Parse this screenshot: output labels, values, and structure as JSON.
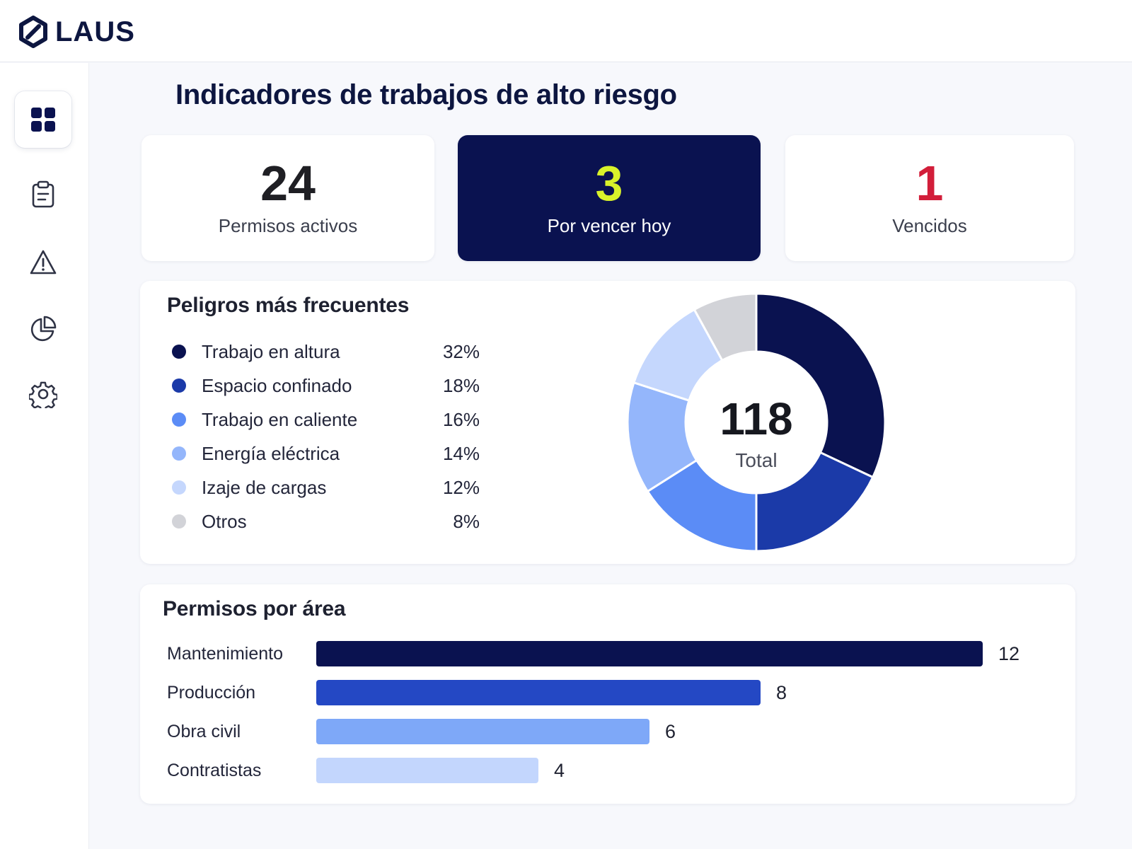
{
  "app": {
    "brand": "LAUS"
  },
  "sidebar": {
    "items": [
      {
        "icon": "dashboard-grid-icon",
        "active": true
      },
      {
        "icon": "clipboard-icon",
        "active": false
      },
      {
        "icon": "warning-triangle-icon",
        "active": false
      },
      {
        "icon": "pie-chart-icon",
        "active": false
      },
      {
        "icon": "gear-icon",
        "active": false
      }
    ]
  },
  "page": {
    "title": "Indicadores de trabajos de alto riesgo"
  },
  "kpis": [
    {
      "value": "24",
      "label": "Permisos activos",
      "value_color": "#1f1f24"
    },
    {
      "value": "3",
      "label": "Por vencer hoy",
      "value_color": "#d9f22a",
      "background": "#0a1250"
    },
    {
      "value": "1",
      "label": "Vencidos",
      "value_color": "#d21e3a"
    }
  ],
  "hazards": {
    "title": "Peligros más frecuentes",
    "total_value": "118",
    "total_label": "Total"
  },
  "areas": {
    "title": "Permisos por área"
  },
  "chart_data": [
    {
      "type": "pie",
      "title": "Peligros más frecuentes",
      "donut": true,
      "categories": [
        "Trabajo en altura",
        "Espacio confinado",
        "Trabajo en caliente",
        "Energía eléctrica",
        "Izaje de cargas",
        "Otros"
      ],
      "values": [
        32,
        18,
        16,
        14,
        12,
        8
      ],
      "labels": [
        "32%",
        "18%",
        "16%",
        "14%",
        "12%",
        "8%"
      ],
      "colors": [
        "#0a1250",
        "#1b3aa8",
        "#5b8cf6",
        "#94b6fb",
        "#c5d7fd",
        "#d2d3d8"
      ],
      "center_value": "118",
      "center_label": "Total",
      "legend_placement": "left"
    },
    {
      "type": "bar",
      "orientation": "horizontal",
      "title": "Permisos por área",
      "categories": [
        "Mantenimiento",
        "Producción",
        "Obra civil",
        "Contratistas"
      ],
      "values": [
        12,
        8,
        6,
        4
      ],
      "colors": [
        "#0a1250",
        "#2448c4",
        "#7ea8f8",
        "#c3d6fd"
      ],
      "xlim": [
        0,
        12.3
      ],
      "grid": false
    }
  ]
}
